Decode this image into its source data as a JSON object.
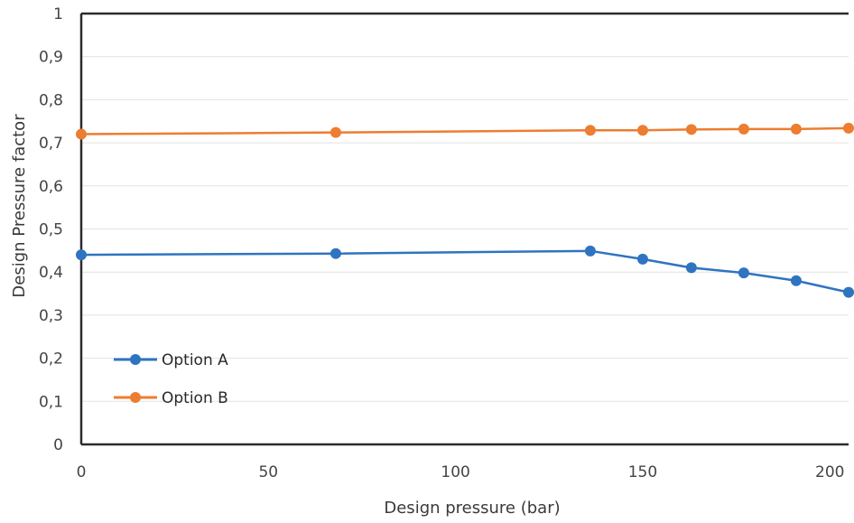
{
  "chart_data": {
    "type": "line",
    "title": "",
    "xlabel": "Design pressure (bar)",
    "ylabel": "Design Pressure factor",
    "xlim": [
      0,
      205
    ],
    "ylim": [
      0,
      1
    ],
    "x_ticks": [
      "0",
      "50",
      "100",
      "150",
      "200"
    ],
    "y_ticks": [
      "0",
      "0,1",
      "0,2",
      "0,3",
      "0,4",
      "0,5",
      "0,6",
      "0,7",
      "0,8",
      "0,9",
      "1"
    ],
    "grid": true,
    "legend_position": "bottom-left",
    "series": [
      {
        "name": "Option A",
        "color": "#2f74c0",
        "x": [
          0,
          68,
          136,
          150,
          163,
          177,
          191,
          205
        ],
        "values": [
          0.44,
          0.443,
          0.449,
          0.43,
          0.41,
          0.398,
          0.38,
          0.353
        ]
      },
      {
        "name": "Option B",
        "color": "#ed7d31",
        "x": [
          0,
          68,
          136,
          150,
          163,
          177,
          191,
          205
        ],
        "values": [
          0.72,
          0.724,
          0.729,
          0.729,
          0.731,
          0.732,
          0.732,
          0.734
        ]
      }
    ]
  }
}
